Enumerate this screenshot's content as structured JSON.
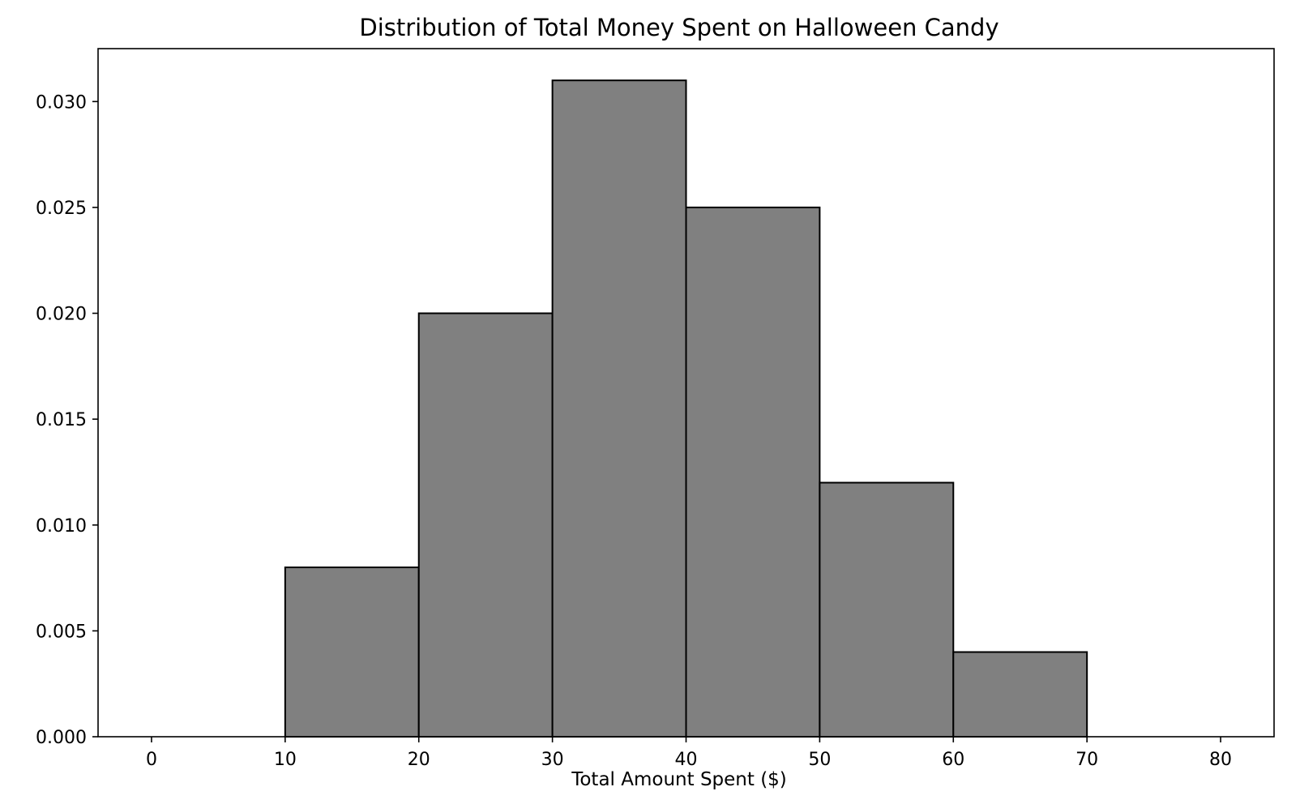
{
  "chart_data": {
    "type": "bar",
    "title": "Distribution of Total Money Spent on Halloween Candy",
    "xlabel": "Total Amount Spent ($)",
    "ylabel": "",
    "xlim": [
      -4,
      84
    ],
    "ylim": [
      0,
      0.0325
    ],
    "bin_edges": [
      10,
      20,
      30,
      40,
      50,
      60,
      70
    ],
    "values": [
      0.008,
      0.02,
      0.031,
      0.025,
      0.012,
      0.004
    ],
    "x_ticks": [
      0,
      10,
      20,
      30,
      40,
      50,
      60,
      70,
      80
    ],
    "x_tick_labels": [
      "0",
      "10",
      "20",
      "30",
      "40",
      "50",
      "60",
      "70",
      "80"
    ],
    "y_ticks": [
      0,
      0.005,
      0.01,
      0.015,
      0.02,
      0.025,
      0.03
    ],
    "y_tick_labels": [
      "0.000",
      "0.005",
      "0.010",
      "0.015",
      "0.020",
      "0.025",
      "0.030"
    ],
    "grid": false,
    "legend": "none",
    "bar_color": "#808080",
    "edge_color": "#000000"
  }
}
